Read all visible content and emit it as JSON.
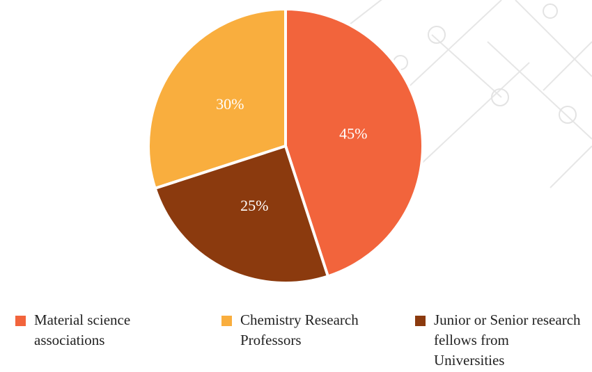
{
  "chart_data": {
    "type": "pie",
    "categories": [
      "Material science associations",
      "Chemistry Research Professors",
      "Junior or Senior research fellows from Universities"
    ],
    "values": [
      45,
      30,
      25
    ],
    "value_labels": [
      "45%",
      "30%",
      "25%"
    ],
    "colors": [
      "#f2643c",
      "#f9ae3e",
      "#8b3a0e"
    ]
  }
}
